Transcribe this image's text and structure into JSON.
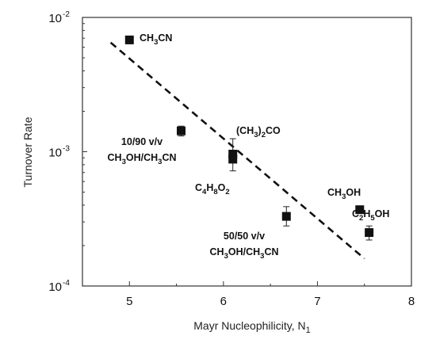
{
  "chart_data": {
    "type": "scatter",
    "xlabel": "Mayr Nucleophilicity, N",
    "xlabel_sub": "1",
    "ylabel": "Turnover Rate",
    "xlim": [
      4.5,
      8
    ],
    "ylim": [
      0.0001,
      0.01
    ],
    "yscale": "log",
    "grid": false,
    "x_ticks": [
      {
        "value": 5,
        "label": "5"
      },
      {
        "value": 6,
        "label": "6"
      },
      {
        "value": 7,
        "label": "7"
      },
      {
        "value": 8,
        "label": "8"
      }
    ],
    "y_ticks": [
      {
        "value": 0.01,
        "base": "10",
        "exp": "-2"
      },
      {
        "value": 0.001,
        "base": "10",
        "exp": "-3"
      },
      {
        "value": 0.0001,
        "base": "10",
        "exp": "-4"
      }
    ],
    "points": [
      {
        "x": 5.0,
        "y": 0.0068,
        "err_low": 0.0068,
        "err_high": 0.0068,
        "label": [
          {
            "t": "CH"
          },
          {
            "t": "3",
            "sub": true
          },
          {
            "t": "CN"
          }
        ]
      },
      {
        "x": 5.55,
        "y": 0.00143,
        "err_low": 0.00131,
        "err_high": 0.00155,
        "label": [
          {
            "t": "10/90 v/v"
          }
        ],
        "label2": [
          {
            "t": "CH"
          },
          {
            "t": "3",
            "sub": true
          },
          {
            "t": "OH/CH"
          },
          {
            "t": "3",
            "sub": true
          },
          {
            "t": "CN"
          }
        ]
      },
      {
        "x": 6.1,
        "y": 0.00096,
        "err_low": 0.00085,
        "err_high": 0.00125,
        "label": [
          {
            "t": "(CH"
          },
          {
            "t": "3",
            "sub": true
          },
          {
            "t": ")"
          },
          {
            "t": "2",
            "sub": true
          },
          {
            "t": "CO"
          }
        ]
      },
      {
        "x": 6.1,
        "y": 0.00088,
        "err_low": 0.00072,
        "err_high": 0.00097,
        "label": [
          {
            "t": "C"
          },
          {
            "t": "4",
            "sub": true
          },
          {
            "t": "H"
          },
          {
            "t": "8",
            "sub": true
          },
          {
            "t": "O"
          },
          {
            "t": "2",
            "sub": true
          }
        ]
      },
      {
        "x": 6.67,
        "y": 0.00033,
        "err_low": 0.00028,
        "err_high": 0.00039,
        "label": [
          {
            "t": "50/50 v/v"
          }
        ],
        "label2": [
          {
            "t": "CH"
          },
          {
            "t": "3",
            "sub": true
          },
          {
            "t": "OH/CH"
          },
          {
            "t": "3",
            "sub": true
          },
          {
            "t": "CN"
          }
        ]
      },
      {
        "x": 7.45,
        "y": 0.00037,
        "err_low": 0.00037,
        "err_high": 0.00037,
        "label": [
          {
            "t": "CH"
          },
          {
            "t": "3",
            "sub": true
          },
          {
            "t": "OH"
          }
        ]
      },
      {
        "x": 7.55,
        "y": 0.00025,
        "err_low": 0.00022,
        "err_high": 0.00028,
        "label": [
          {
            "t": "C"
          },
          {
            "t": "2",
            "sub": true
          },
          {
            "t": "H"
          },
          {
            "t": "5",
            "sub": true
          },
          {
            "t": "OH"
          }
        ]
      }
    ],
    "trendline": {
      "style": "dashed",
      "x": [
        4.8,
        7.5
      ],
      "y": [
        0.0065,
        0.00016
      ]
    }
  }
}
